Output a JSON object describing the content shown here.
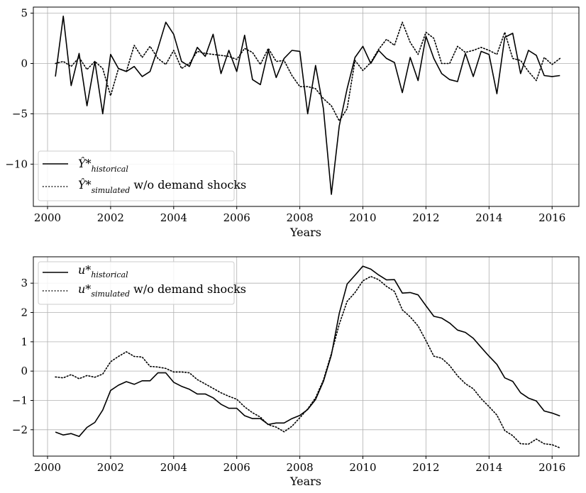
{
  "chart_data": [
    {
      "type": "line",
      "xlabel": "Years",
      "ylabel": "",
      "title": "",
      "xlim": [
        1999.55,
        2016.85
      ],
      "ylim": [
        -14.2,
        5.6
      ],
      "xticks": [
        2000,
        2002,
        2004,
        2006,
        2008,
        2010,
        2012,
        2014,
        2016
      ],
      "yticks": [
        5,
        0,
        -5,
        -10
      ],
      "grid": true,
      "legend_position": "lower-left",
      "legend": [
        {
          "symbol": "Ŷ*",
          "subscript": "historical",
          "suffix": ""
        },
        {
          "symbol": "Ŷ*",
          "subscript": "simulated",
          "suffix": " w/o demand shocks"
        }
      ],
      "x": [
        2000.25,
        2000.5,
        2000.75,
        2001.0,
        2001.25,
        2001.5,
        2001.75,
        2002.0,
        2002.25,
        2002.5,
        2002.75,
        2003.0,
        2003.25,
        2003.5,
        2003.75,
        2004.0,
        2004.25,
        2004.5,
        2004.75,
        2005.0,
        2005.25,
        2005.5,
        2005.75,
        2006.0,
        2006.25,
        2006.5,
        2006.75,
        2007.0,
        2007.25,
        2007.5,
        2007.75,
        2008.0,
        2008.25,
        2008.5,
        2008.75,
        2009.0,
        2009.25,
        2009.5,
        2009.75,
        2010.0,
        2010.25,
        2010.5,
        2010.75,
        2011.0,
        2011.25,
        2011.5,
        2011.75,
        2012.0,
        2012.25,
        2012.5,
        2012.75,
        2013.0,
        2013.25,
        2013.5,
        2013.75,
        2014.0,
        2014.25,
        2014.5,
        2014.75,
        2015.0,
        2015.25,
        2015.5,
        2015.75,
        2016.0,
        2016.25
      ],
      "series": [
        {
          "name": "historical",
          "style": "solid",
          "values": [
            -1.3,
            4.7,
            -2.2,
            1.0,
            -4.2,
            0.2,
            -5.0,
            0.9,
            -0.5,
            -0.8,
            -0.3,
            -1.3,
            -0.8,
            1.5,
            4.1,
            2.9,
            0.2,
            -0.3,
            1.6,
            0.7,
            2.9,
            -1.0,
            1.3,
            -0.8,
            2.8,
            -1.6,
            -2.1,
            1.3,
            -1.4,
            0.5,
            1.3,
            1.2,
            -5.0,
            -0.2,
            -4.5,
            -13.0,
            -6.2,
            -2.5,
            0.6,
            1.7,
            0.0,
            1.3,
            0.5,
            0.1,
            -2.9,
            0.6,
            -1.7,
            2.7,
            0.5,
            -1.0,
            -1.6,
            -1.8,
            1.0,
            -1.3,
            1.2,
            0.9,
            -3.0,
            2.6,
            3.0,
            -1.0,
            1.3,
            0.8,
            -1.2,
            -1.3,
            -1.2
          ]
        },
        {
          "name": "simulated w/o demand shocks",
          "style": "dotted",
          "values": [
            0.0,
            0.2,
            -0.3,
            0.6,
            -0.6,
            0.2,
            -0.5,
            -3.2,
            -0.5,
            -0.8,
            1.8,
            0.6,
            1.7,
            0.5,
            -0.1,
            1.3,
            -0.5,
            0.0,
            1.2,
            1.0,
            0.9,
            0.8,
            0.7,
            0.4,
            1.5,
            1.1,
            -0.1,
            1.5,
            0.2,
            0.3,
            -1.2,
            -2.3,
            -2.3,
            -2.5,
            -3.5,
            -4.2,
            -5.7,
            -4.5,
            0.3,
            -0.7,
            0.1,
            1.4,
            2.4,
            1.8,
            4.1,
            2.1,
            0.9,
            3.1,
            2.5,
            0.0,
            0.0,
            1.7,
            1.1,
            1.3,
            1.6,
            1.3,
            0.9,
            3.1,
            0.5,
            0.3,
            -0.8,
            -1.7,
            0.6,
            -0.1,
            0.5
          ]
        }
      ]
    },
    {
      "type": "line",
      "xlabel": "Years",
      "ylabel": "",
      "title": "",
      "xlim": [
        1999.55,
        2016.85
      ],
      "ylim": [
        -2.9,
        3.9
      ],
      "xticks": [
        2000,
        2002,
        2004,
        2006,
        2008,
        2010,
        2012,
        2014,
        2016
      ],
      "yticks": [
        3,
        2,
        1,
        0,
        -1,
        -2
      ],
      "grid": true,
      "legend_position": "upper-left",
      "legend": [
        {
          "symbol": "u*",
          "subscript": "historical",
          "suffix": ""
        },
        {
          "symbol": "u*",
          "subscript": "simulated",
          "suffix": " w/o demand shocks"
        }
      ],
      "x": [
        2000.25,
        2000.5,
        2000.75,
        2001.0,
        2001.25,
        2001.5,
        2001.75,
        2002.0,
        2002.25,
        2002.5,
        2002.75,
        2003.0,
        2003.25,
        2003.5,
        2003.75,
        2004.0,
        2004.25,
        2004.5,
        2004.75,
        2005.0,
        2005.25,
        2005.5,
        2005.75,
        2006.0,
        2006.25,
        2006.5,
        2006.75,
        2007.0,
        2007.25,
        2007.5,
        2007.75,
        2008.0,
        2008.25,
        2008.5,
        2008.75,
        2009.0,
        2009.25,
        2009.5,
        2009.75,
        2010.0,
        2010.25,
        2010.5,
        2010.75,
        2011.0,
        2011.25,
        2011.5,
        2011.75,
        2012.0,
        2012.25,
        2012.5,
        2012.75,
        2013.0,
        2013.25,
        2013.5,
        2013.75,
        2014.0,
        2014.25,
        2014.5,
        2014.75,
        2015.0,
        2015.25,
        2015.5,
        2015.75,
        2016.0,
        2016.25
      ],
      "series": [
        {
          "name": "historical",
          "style": "solid",
          "values": [
            -2.08,
            -2.18,
            -2.13,
            -2.23,
            -1.92,
            -1.75,
            -1.33,
            -0.66,
            -0.48,
            -0.36,
            -0.45,
            -0.33,
            -0.33,
            -0.06,
            -0.06,
            -0.38,
            -0.52,
            -0.62,
            -0.78,
            -0.78,
            -0.91,
            -1.13,
            -1.27,
            -1.27,
            -1.52,
            -1.62,
            -1.62,
            -1.82,
            -1.77,
            -1.77,
            -1.62,
            -1.51,
            -1.31,
            -0.97,
            -0.35,
            0.55,
            1.97,
            2.97,
            3.27,
            3.58,
            3.48,
            3.28,
            3.11,
            3.12,
            2.66,
            2.68,
            2.6,
            2.23,
            1.87,
            1.81,
            1.64,
            1.4,
            1.32,
            1.12,
            0.81,
            0.51,
            0.23,
            -0.23,
            -0.35,
            -0.74,
            -0.92,
            -1.02,
            -1.36,
            -1.43,
            -1.53
          ]
        },
        {
          "name": "simulated w/o demand shocks",
          "style": "dotted",
          "values": [
            -0.2,
            -0.23,
            -0.12,
            -0.26,
            -0.15,
            -0.21,
            -0.1,
            0.32,
            0.5,
            0.66,
            0.5,
            0.48,
            0.16,
            0.14,
            0.09,
            -0.03,
            -0.03,
            -0.06,
            -0.29,
            -0.44,
            -0.59,
            -0.74,
            -0.86,
            -0.96,
            -1.22,
            -1.42,
            -1.57,
            -1.83,
            -1.91,
            -2.07,
            -1.88,
            -1.59,
            -1.29,
            -0.91,
            -0.3,
            0.6,
            1.6,
            2.38,
            2.68,
            3.08,
            3.23,
            3.12,
            2.89,
            2.72,
            2.09,
            1.85,
            1.54,
            1.04,
            0.51,
            0.44,
            0.19,
            -0.16,
            -0.43,
            -0.6,
            -0.94,
            -1.21,
            -1.5,
            -2.03,
            -2.2,
            -2.48,
            -2.49,
            -2.32,
            -2.48,
            -2.51,
            -2.62
          ]
        }
      ]
    }
  ]
}
